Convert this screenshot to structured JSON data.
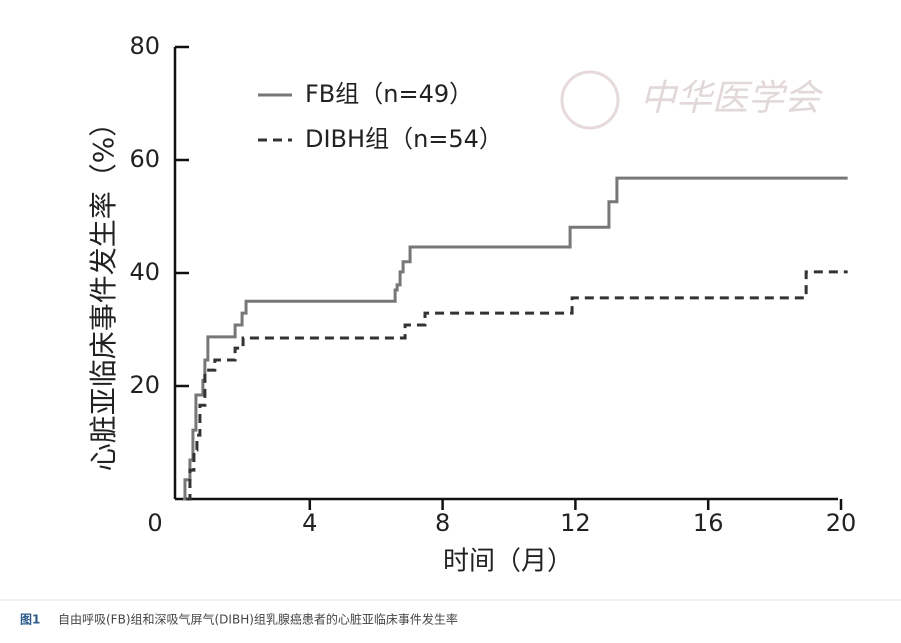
{
  "chart_data": {
    "type": "step",
    "x_label": "时间（月）",
    "y_label": "心脏亚临床事件发生率（%）",
    "xlim": [
      0,
      20
    ],
    "ylim": [
      0,
      80
    ],
    "xticks": [
      0,
      4,
      8,
      12,
      16,
      20
    ],
    "yticks": [
      20,
      40,
      60,
      80
    ],
    "watermark": "中华医学会",
    "series": [
      {
        "name": "FB组（n=49）",
        "color": "#777777",
        "dash": false,
        "x": [
          0.18,
          0.24,
          0.39,
          0.48,
          0.57,
          0.78,
          0.84,
          0.93,
          1.75,
          1.96,
          2.08,
          6.57,
          6.63,
          6.72,
          6.81,
          7.02,
          11.84,
          13.01,
          13.25,
          20.2
        ],
        "values": [
          0,
          3.4,
          6.9,
          12.2,
          18.4,
          21,
          24.6,
          28.7,
          30.8,
          32.9,
          35,
          37,
          37.9,
          40.2,
          42,
          44.6,
          48.1,
          52.6,
          56.8,
          56.8
        ]
      },
      {
        "name": "DIBH组（n=54）",
        "color": "#333333",
        "dash": true,
        "x": [
          0.27,
          0.39,
          0.51,
          0.6,
          0.69,
          0.84,
          1.14,
          1.75,
          1.99,
          6.87,
          7.47,
          11.9,
          18.95,
          20.2
        ],
        "values": [
          0,
          5.1,
          8.7,
          11.3,
          16.6,
          22.8,
          24.6,
          26.7,
          28.5,
          30.8,
          32.9,
          35.6,
          40.2,
          40.2
        ]
      }
    ]
  },
  "caption": {
    "label": "图1",
    "text": "自由呼吸(FB)组和深吸气屏气(DIBH)组乳腺癌患者的心脏亚临床事件发生率"
  }
}
